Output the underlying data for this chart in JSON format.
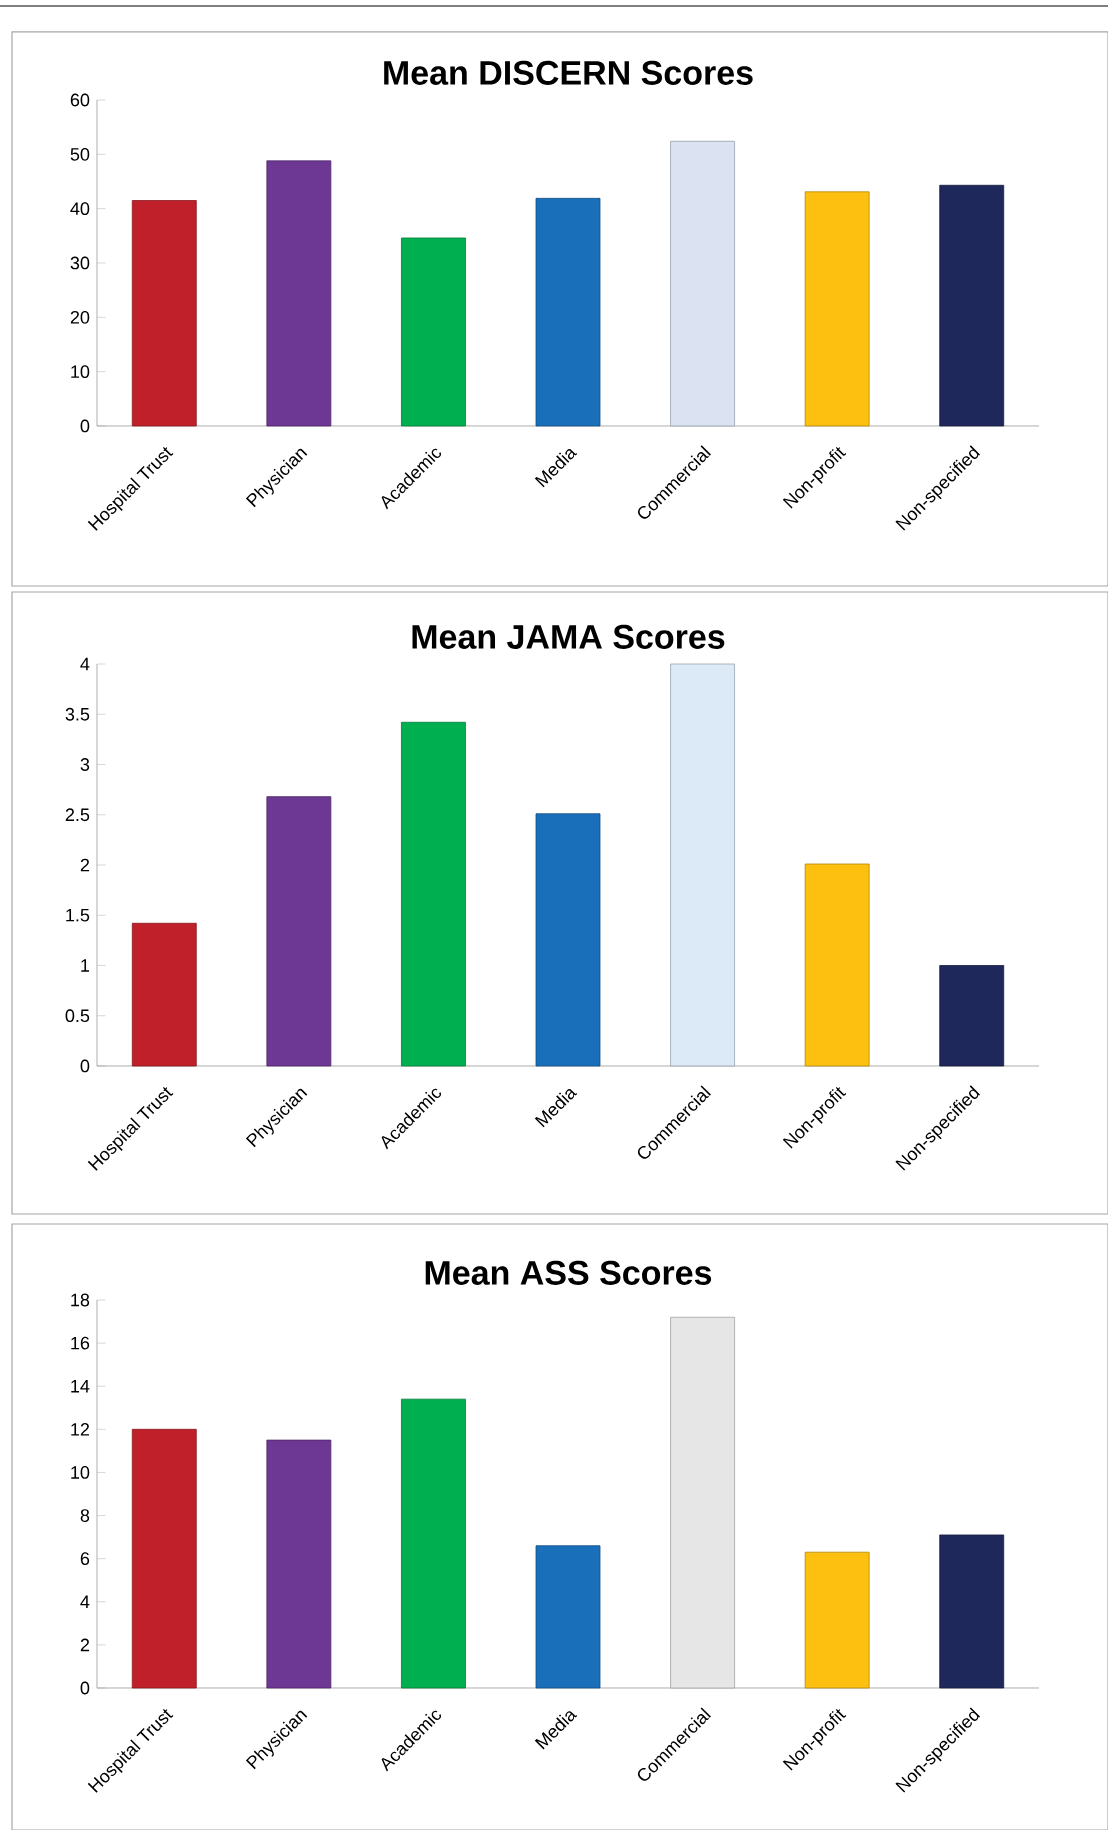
{
  "chart_data": [
    {
      "type": "bar",
      "title": "Mean DISCERN Scores",
      "categories": [
        "Hospital Trust",
        "Physician",
        "Academic",
        "Media",
        "Commercial",
        "Non-profit",
        "Non-specified"
      ],
      "values": [
        41.5,
        48.8,
        34.6,
        41.9,
        52.4,
        43.1,
        44.3
      ],
      "colors": [
        "#c0202a",
        "#6d3893",
        "#00b050",
        "#1a6fba",
        "#dbe3f3",
        "#fdc010",
        "#1f285a"
      ],
      "ylim": [
        0,
        60
      ],
      "yticks": [
        0,
        10,
        20,
        30,
        40,
        50,
        60
      ]
    },
    {
      "type": "bar",
      "title": "Mean JAMA Scores",
      "categories": [
        "Hospital Trust",
        "Physician",
        "Academic",
        "Media",
        "Commercial",
        "Non-profit",
        "Non-specified"
      ],
      "values": [
        1.42,
        2.68,
        3.42,
        2.51,
        4.0,
        2.01,
        1.0
      ],
      "colors": [
        "#c0202a",
        "#6d3893",
        "#00b050",
        "#1a6fba",
        "#dce9f6",
        "#fdc010",
        "#1f285a"
      ],
      "ylim": [
        0,
        4
      ],
      "yticks": [
        0,
        0.5,
        1,
        1.5,
        2,
        2.5,
        3,
        3.5,
        4
      ]
    },
    {
      "type": "bar",
      "title": "Mean ASS Scores",
      "categories": [
        "Hospital Trust",
        "Physician",
        "Academic",
        "Media",
        "Commercial",
        "Non-profit",
        "Non-specified"
      ],
      "values": [
        12.0,
        11.5,
        13.4,
        6.6,
        17.2,
        6.3,
        7.1
      ],
      "colors": [
        "#c0202a",
        "#6d3893",
        "#00b050",
        "#1a6fba",
        "#e6e6e6",
        "#fdc010",
        "#1f285a"
      ],
      "ylim": [
        0,
        18
      ],
      "yticks": [
        0,
        2,
        4,
        6,
        8,
        10,
        12,
        14,
        16,
        18
      ]
    }
  ]
}
